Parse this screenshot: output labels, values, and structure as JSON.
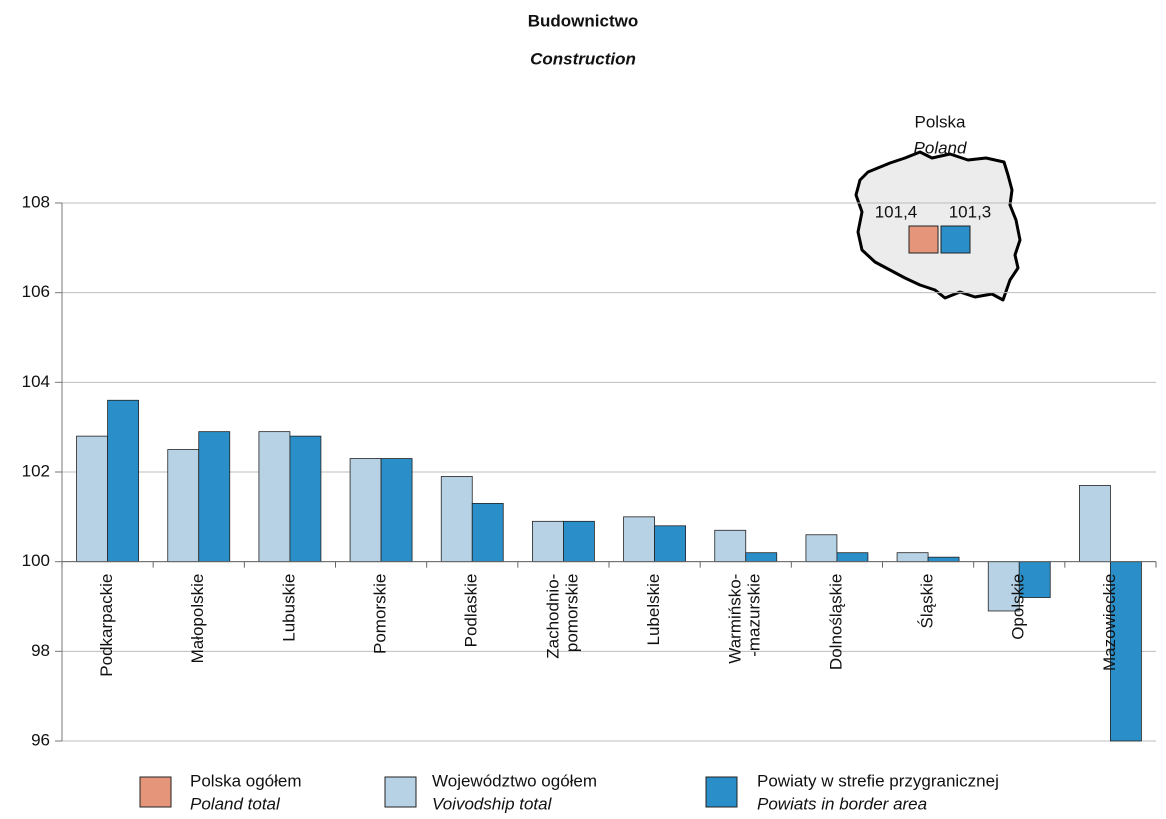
{
  "chart_data": {
    "type": "bar",
    "title": "Budownictwo",
    "subtitle": "Construction",
    "categories": [
      [
        "Podkarpackie"
      ],
      [
        "Małopolskie"
      ],
      [
        "Lubuskie"
      ],
      [
        "Pomorskie"
      ],
      [
        "Podlaskie"
      ],
      [
        "Zachodnio-",
        "pomorskie"
      ],
      [
        "Lubelskie"
      ],
      [
        "Warmińsko-",
        "-mazurskie"
      ],
      [
        "Dolnośląskie"
      ],
      [
        "Śląskie"
      ],
      [
        "Opolskie"
      ],
      [
        "Mazowieckie"
      ]
    ],
    "series": [
      {
        "name": "Polska ogółem",
        "name_en": "Poland total",
        "color": "#e5957a",
        "total": 101.4,
        "total_label": "101,4"
      },
      {
        "name": "Województwo ogółem",
        "name_en": "Voivodship total",
        "color": "#b7d2e5",
        "values": [
          102.8,
          102.5,
          102.9,
          102.3,
          101.9,
          100.9,
          101.0,
          100.7,
          100.6,
          100.2,
          98.9,
          101.7
        ]
      },
      {
        "name": "Powiaty w strefie przygranicznej",
        "name_en": "Powiats in border area",
        "color": "#2a8fc9",
        "values": [
          103.6,
          102.9,
          102.8,
          102.3,
          101.3,
          100.9,
          100.8,
          100.2,
          100.2,
          100.1,
          99.2,
          96.0
        ],
        "total": 101.3,
        "total_label": "101,3"
      }
    ],
    "inset": {
      "title": "Polska",
      "subtitle": "Poland"
    },
    "ylim": [
      96,
      108
    ],
    "yticks": [
      96,
      98,
      100,
      102,
      104,
      106,
      108
    ],
    "baseline": 100,
    "grid": true
  }
}
